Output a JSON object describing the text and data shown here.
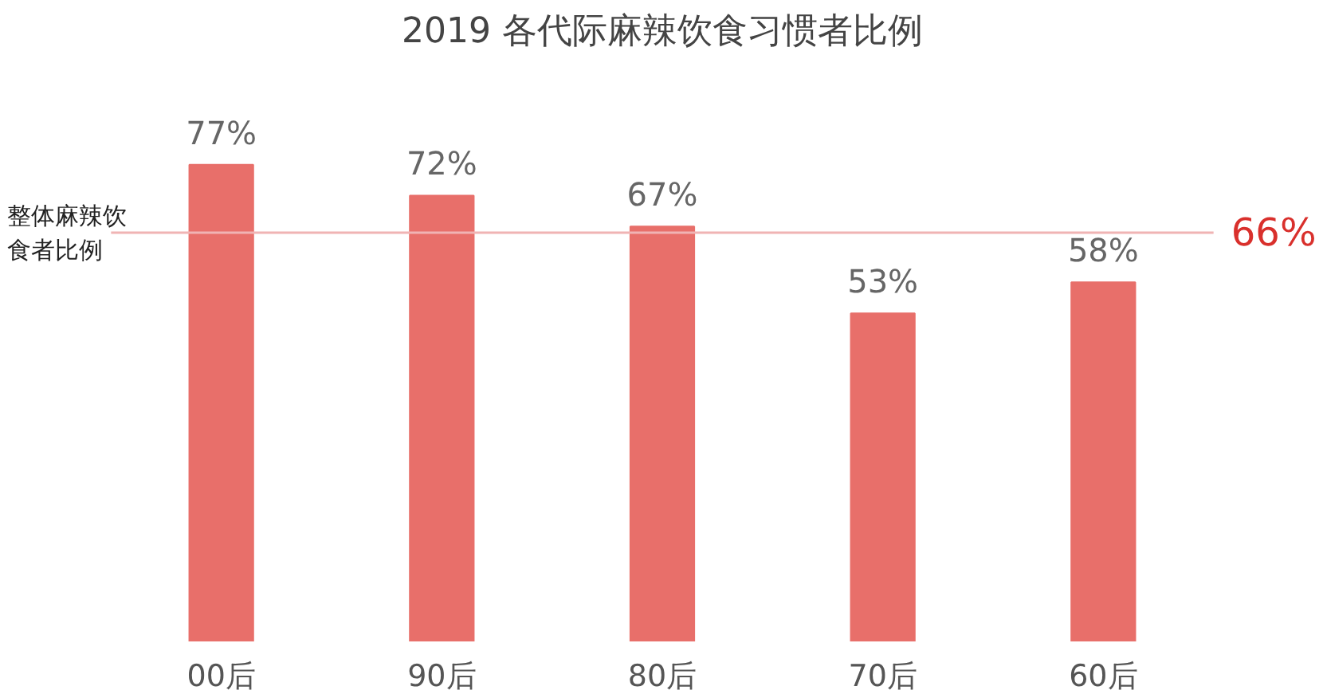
{
  "chart_data": {
    "type": "bar",
    "title": "2019 各代际麻辣饮食习惯者比例",
    "categories": [
      "00后",
      "90后",
      "80后",
      "70后",
      "60后"
    ],
    "values": [
      77,
      72,
      67,
      53,
      58
    ],
    "color": "#e86f6a",
    "value_labels": [
      "77%",
      "72%",
      "67%",
      "53%",
      "58%"
    ],
    "ref_lines": [
      {
        "axis": "y",
        "value": 66,
        "label": "66%",
        "color": "#f0b4b4"
      }
    ],
    "annotations": [
      "整体麻辣饮食者比例"
    ],
    "grid": false
  }
}
